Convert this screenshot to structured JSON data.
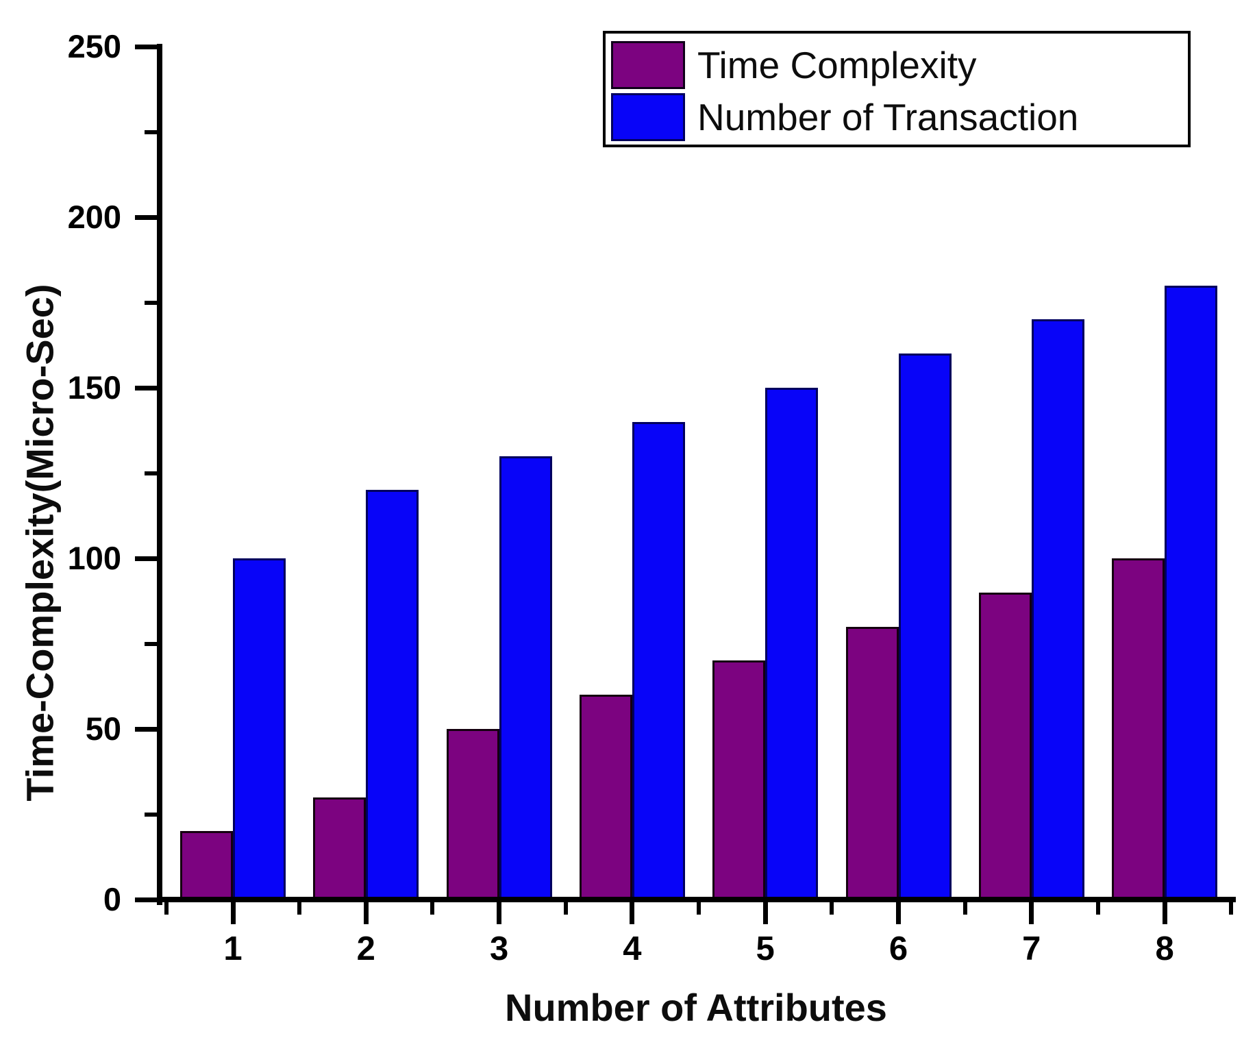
{
  "chart_data": {
    "type": "bar",
    "title": "",
    "xlabel": "Number of Attributes",
    "ylabel": "Time-Complexity(Micro-Sec)",
    "categories": [
      "1",
      "2",
      "3",
      "4",
      "5",
      "6",
      "7",
      "8"
    ],
    "series": [
      {
        "name": "Time Complexity",
        "color": "#7C0380",
        "border_color": "#14000f",
        "values": [
          20,
          30,
          50,
          60,
          70,
          80,
          90,
          100
        ]
      },
      {
        "name": "Number of Transaction",
        "color": "#0804F8",
        "border_color": "#00005e",
        "values": [
          100,
          120,
          130,
          140,
          150,
          160,
          170,
          180
        ]
      }
    ],
    "ylim": [
      0,
      250
    ],
    "y_major_step": 50,
    "y_minor_step": 25,
    "y_tick_labels": [
      "0",
      "50",
      "100",
      "150",
      "200",
      "250"
    ],
    "grid": false,
    "legend_position": "top-right",
    "axis_color": "#000000",
    "text_color": "#0d0d0d",
    "background_color": "#ffffff"
  }
}
